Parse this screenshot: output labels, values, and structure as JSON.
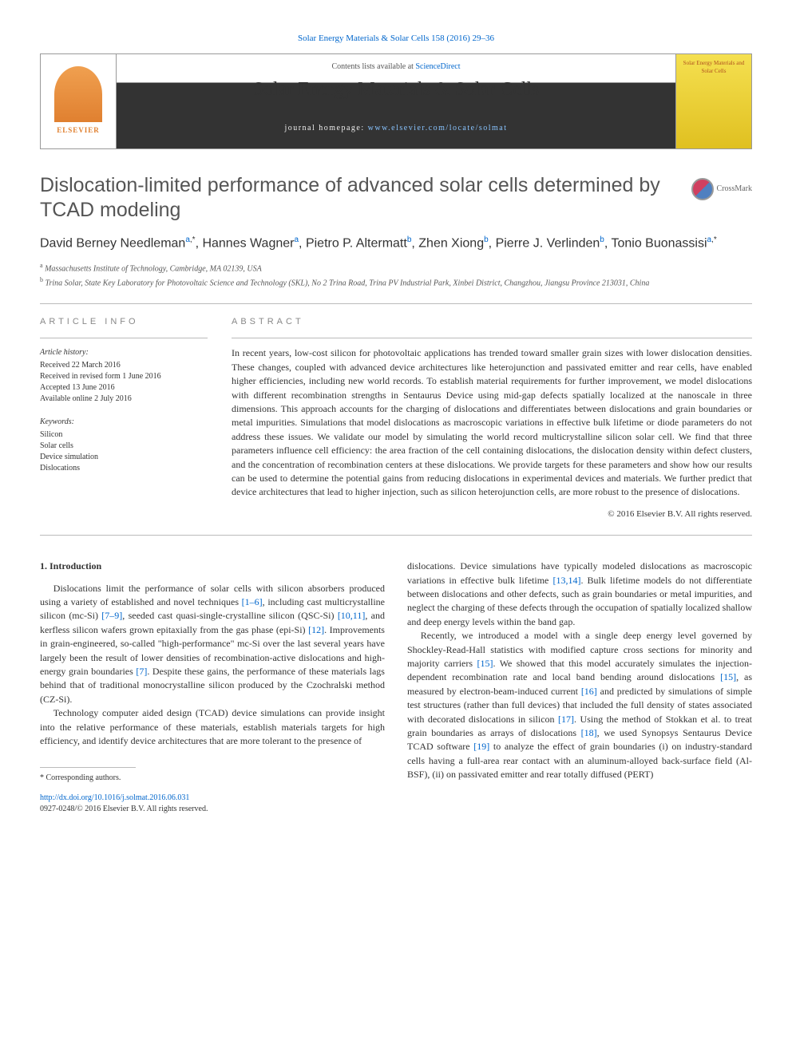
{
  "journal_ref": "Solar Energy Materials & Solar Cells 158 (2016) 29–36",
  "header": {
    "contents_text": "Contents lists available at ",
    "contents_link": "ScienceDirect",
    "journal_title": "Solar Energy Materials & Solar Cells",
    "homepage_label": "journal homepage: ",
    "homepage_url": "www.elsevier.com/locate/solmat",
    "elsevier_label": "ELSEVIER",
    "cover_text": "Solar Energy Materials and Solar Cells"
  },
  "crossmark_label": "CrossMark",
  "title": "Dislocation-limited performance of advanced solar cells determined by TCAD modeling",
  "authors": [
    {
      "name": "David Berney Needleman",
      "aff": "a",
      "corr": true
    },
    {
      "name": "Hannes Wagner",
      "aff": "a",
      "corr": false
    },
    {
      "name": "Pietro P. Altermatt",
      "aff": "b",
      "corr": false
    },
    {
      "name": "Zhen Xiong",
      "aff": "b",
      "corr": false
    },
    {
      "name": "Pierre J. Verlinden",
      "aff": "b",
      "corr": false
    },
    {
      "name": "Tonio Buonassisi",
      "aff": "a",
      "corr": true
    }
  ],
  "affiliations": {
    "a": "Massachusetts Institute of Technology, Cambridge, MA 02139, USA",
    "b": "Trina Solar, State Key Laboratory for Photovoltaic Science and Technology (SKL), No 2 Trina Road, Trina PV Industrial Park, Xinbei District, Changzhou, Jiangsu Province 213031, China"
  },
  "article_info": {
    "section_label": "ARTICLE INFO",
    "history_label": "Article history:",
    "history": [
      "Received 22 March 2016",
      "Received in revised form 1 June 2016",
      "Accepted 13 June 2016",
      "Available online 2 July 2016"
    ],
    "keywords_label": "Keywords:",
    "keywords": [
      "Silicon",
      "Solar cells",
      "Device simulation",
      "Dislocations"
    ]
  },
  "abstract": {
    "section_label": "ABSTRACT",
    "text": "In recent years, low-cost silicon for photovoltaic applications has trended toward smaller grain sizes with lower dislocation densities. These changes, coupled with advanced device architectures like heterojunction and passivated emitter and rear cells, have enabled higher efficiencies, including new world records. To establish material requirements for further improvement, we model dislocations with different recombination strengths in Sentaurus Device using mid-gap defects spatially localized at the nanoscale in three dimensions. This approach accounts for the charging of dislocations and differentiates between dislocations and grain boundaries or metal impurities. Simulations that model dislocations as macroscopic variations in effective bulk lifetime or diode parameters do not address these issues. We validate our model by simulating the world record multicrystalline silicon solar cell. We find that three parameters influence cell efficiency: the area fraction of the cell containing dislocations, the dislocation density within defect clusters, and the concentration of recombination centers at these dislocations. We provide targets for these parameters and show how our results can be used to determine the potential gains from reducing dislocations in experimental devices and materials. We further predict that device architectures that lead to higher injection, such as silicon heterojunction cells, are more robust to the presence of dislocations.",
    "copyright": "© 2016 Elsevier B.V. All rights reserved."
  },
  "body": {
    "heading": "1. Introduction",
    "p1a": "Dislocations limit the performance of solar cells with silicon absorbers produced using a variety of established and novel techniques ",
    "p1_ref1": "[1–6]",
    "p1b": ", including cast multicrystalline silicon (mc-Si) ",
    "p1_ref2": "[7–9]",
    "p1c": ", seeded cast quasi-single-crystalline silicon (QSC-Si) ",
    "p1_ref3": "[10,11]",
    "p1d": ", and kerfless silicon wafers grown epitaxially from the gas phase (epi-Si) ",
    "p1_ref4": "[12]",
    "p1e": ". Improvements in grain-engineered, so-called \"high-performance\" mc-Si over the last several years have largely been the result of lower densities of recombination-active dislocations and high-energy grain boundaries ",
    "p1_ref5": "[7]",
    "p1f": ". Despite these gains, the performance of these materials lags behind that of traditional monocrystalline silicon produced by the Czochralski method (CZ-Si).",
    "p2": "Technology computer aided design (TCAD) device simulations can provide insight into the relative performance of these materials, establish materials targets for high efficiency, and identify device architectures that are more tolerant to the presence of",
    "p3a": "dislocations. Device simulations have typically modeled dislocations as macroscopic variations in effective bulk lifetime ",
    "p3_ref1": "[13,14]",
    "p3b": ". Bulk lifetime models do not differentiate between dislocations and other defects, such as grain boundaries or metal impurities, and neglect the charging of these defects through the occupation of spatially localized shallow and deep energy levels within the band gap.",
    "p4a": "Recently, we introduced a model with a single deep energy level governed by Shockley-Read-Hall statistics with modified capture cross sections for minority and majority carriers ",
    "p4_ref1": "[15]",
    "p4b": ". We showed that this model accurately simulates the injection-dependent recombination rate and local band bending around dislocations ",
    "p4_ref2": "[15]",
    "p4c": ", as measured by electron-beam-induced current ",
    "p4_ref3": "[16]",
    "p4d": " and predicted by simulations of simple test structures (rather than full devices) that included the full density of states associated with decorated dislocations in silicon ",
    "p4_ref4": "[17]",
    "p4e": ". Using the method of Stokkan et al. to treat grain boundaries as arrays of dislocations ",
    "p4_ref5": "[18]",
    "p4f": ", we used Synopsys Sentaurus Device TCAD software ",
    "p4_ref6": "[19]",
    "p4g": " to analyze the effect of grain boundaries (i) on industry-standard cells having a full-area rear contact with an aluminum-alloyed back-surface field (Al-BSF), (ii) on passivated emitter and rear totally diffused (PERT)"
  },
  "footnote": {
    "corr": "Corresponding authors."
  },
  "footer": {
    "doi": "http://dx.doi.org/10.1016/j.solmat.2016.06.031",
    "issn_line": "0927-0248/© 2016 Elsevier B.V. All rights reserved."
  }
}
